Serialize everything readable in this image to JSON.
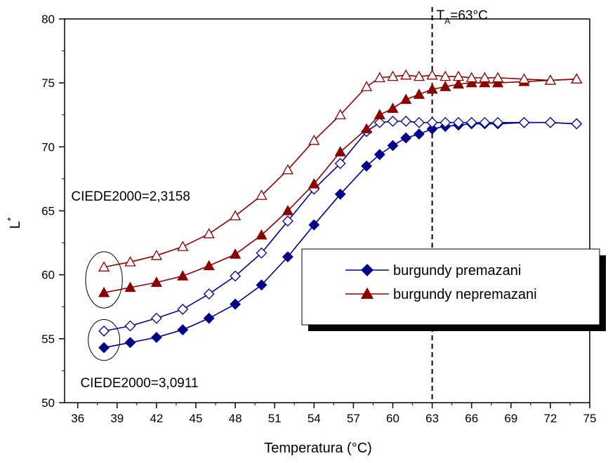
{
  "chart_data": {
    "type": "line",
    "title": "",
    "xlabel": "Temperatura (°C)",
    "ylabel": "L",
    "ylabel_superscript": "*",
    "xlim": [
      35,
      75
    ],
    "ylim": [
      50,
      80
    ],
    "xticks": [
      36,
      39,
      42,
      45,
      48,
      51,
      54,
      57,
      60,
      63,
      66,
      69,
      72,
      75
    ],
    "yticks": [
      50,
      55,
      60,
      65,
      70,
      75,
      80
    ],
    "grid": false,
    "legend_position": "center-right",
    "series": [
      {
        "name": "burgundy premazani",
        "color": "#00008b",
        "marker": "diamond",
        "filled": true,
        "x": [
          38,
          40,
          42,
          44,
          46,
          48,
          50,
          52,
          54,
          56,
          58,
          59,
          60,
          61,
          62,
          63,
          64,
          65,
          66,
          67,
          68,
          70,
          72,
          74
        ],
        "y": [
          54.3,
          54.7,
          55.1,
          55.7,
          56.6,
          57.7,
          59.2,
          61.4,
          63.9,
          66.3,
          68.5,
          69.4,
          70.1,
          70.7,
          71.0,
          71.4,
          71.6,
          71.7,
          71.8,
          71.8,
          71.8,
          71.9,
          71.9,
          71.8
        ]
      },
      {
        "name": "",
        "color": "#00008b",
        "marker": "diamond",
        "filled": false,
        "x": [
          38,
          40,
          42,
          44,
          46,
          48,
          50,
          52,
          54,
          56,
          58,
          59,
          60,
          61,
          62,
          63,
          64,
          65,
          66,
          67,
          68,
          70,
          72,
          74
        ],
        "y": [
          55.6,
          56.0,
          56.6,
          57.3,
          58.5,
          59.9,
          61.7,
          64.2,
          66.7,
          68.7,
          71.2,
          71.9,
          72.0,
          72.0,
          71.9,
          71.9,
          71.9,
          71.9,
          71.9,
          71.9,
          71.9,
          71.9,
          71.9,
          71.8
        ]
      },
      {
        "name": "burgundy nepremazani",
        "color": "#8b0000",
        "marker": "triangle",
        "filled": true,
        "x": [
          38,
          40,
          42,
          44,
          46,
          48,
          50,
          52,
          54,
          56,
          58,
          59,
          60,
          61,
          62,
          63,
          64,
          65,
          66,
          67,
          68,
          70,
          72,
          74
        ],
        "y": [
          58.6,
          59.0,
          59.4,
          59.9,
          60.7,
          61.6,
          63.1,
          65.0,
          67.1,
          69.6,
          71.4,
          72.5,
          73.0,
          73.7,
          74.1,
          74.5,
          74.7,
          74.9,
          75.0,
          75.0,
          75.0,
          75.1,
          75.2,
          75.3
        ]
      },
      {
        "name": "",
        "color": "#8b0000",
        "marker": "triangle",
        "filled": false,
        "x": [
          38,
          40,
          42,
          44,
          46,
          48,
          50,
          52,
          54,
          56,
          58,
          59,
          60,
          61,
          62,
          63,
          64,
          65,
          66,
          67,
          68,
          70,
          72,
          74
        ],
        "y": [
          60.6,
          61.0,
          61.5,
          62.2,
          63.2,
          64.6,
          66.2,
          68.2,
          70.5,
          72.5,
          74.7,
          75.4,
          75.5,
          75.6,
          75.5,
          75.6,
          75.5,
          75.5,
          75.4,
          75.4,
          75.4,
          75.3,
          75.2,
          75.3
        ]
      }
    ],
    "reference_line": {
      "x": 63,
      "label_main": "T",
      "label_sub": "A",
      "label_value": "=63°C"
    },
    "annotations": [
      {
        "text": "CIEDE2000=2,3158",
        "x": 35.5,
        "y": 65.8
      },
      {
        "text": "CIEDE2000=3,0911",
        "x": 36.2,
        "y": 51.2
      }
    ],
    "ellipses": [
      {
        "cx": 38,
        "cy": 59.6,
        "rx": 1.4,
        "ry": 2.2
      },
      {
        "cx": 38,
        "cy": 54.9,
        "rx": 1.2,
        "ry": 1.6
      }
    ]
  }
}
